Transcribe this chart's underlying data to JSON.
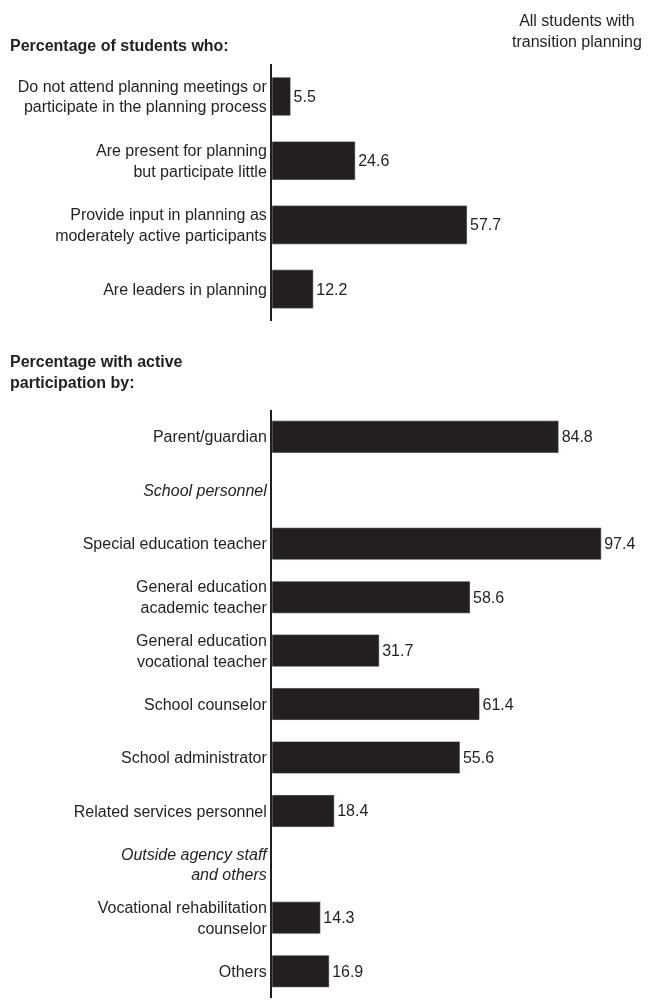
{
  "chart_data": [
    {
      "type": "bar",
      "orientation": "horizontal",
      "title": "Percentage of students who:",
      "annotations": [
        "All students with\ntransition planning"
      ],
      "color": "#231f20",
      "data_labels": true,
      "categories": [
        "Do not attend planning meetings or\nparticipate in the planning process",
        "Are present for planning\nbut participate little",
        "Provide input in planning as\nmoderately active participants",
        "Are leaders in planning"
      ],
      "values": [
        5.5,
        24.6,
        57.7,
        12.2
      ]
    },
    {
      "type": "bar",
      "orientation": "horizontal",
      "title": "Percentage with active\nparticipation by:",
      "color": "#231f20",
      "data_labels": true,
      "categories": [
        "Parent/guardian",
        "School personnel",
        "Special education teacher",
        "General education\nacademic teacher",
        "General education\nvocational teacher",
        "School counselor",
        "School administrator",
        "Related services personnel",
        "Outside agency staff\nand others",
        "Vocational rehabilitation\ncounselor",
        "Others"
      ],
      "values": [
        84.8,
        null,
        97.4,
        58.6,
        31.7,
        61.4,
        55.6,
        18.4,
        null,
        14.3,
        16.9
      ]
    }
  ]
}
